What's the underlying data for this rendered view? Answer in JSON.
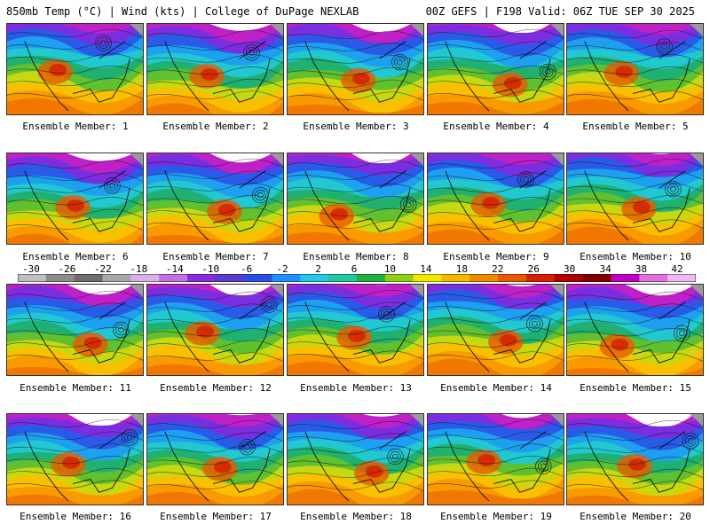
{
  "header": {
    "left": "850mb Temp (°C) | Wind (kts) | College of DuPage NEXLAB",
    "right": "00Z GEFS | F198 Valid: 06Z TUE SEP 30 2025"
  },
  "panels": [
    {
      "label": "Ensemble Member: 1"
    },
    {
      "label": "Ensemble Member: 2"
    },
    {
      "label": "Ensemble Member: 3"
    },
    {
      "label": "Ensemble Member: 4"
    },
    {
      "label": "Ensemble Member: 5"
    },
    {
      "label": "Ensemble Member: 6"
    },
    {
      "label": "Ensemble Member: 7"
    },
    {
      "label": "Ensemble Member: 8"
    },
    {
      "label": "Ensemble Member: 9"
    },
    {
      "label": "Ensemble Member: 10"
    },
    {
      "label": "Ensemble Member: 11"
    },
    {
      "label": "Ensemble Member: 12"
    },
    {
      "label": "Ensemble Member: 13"
    },
    {
      "label": "Ensemble Member: 14"
    },
    {
      "label": "Ensemble Member: 15"
    },
    {
      "label": "Ensemble Member: 16"
    },
    {
      "label": "Ensemble Member: 17"
    },
    {
      "label": "Ensemble Member: 18"
    },
    {
      "label": "Ensemble Member: 19"
    },
    {
      "label": "Ensemble Member: 20"
    }
  ],
  "colorbar": {
    "ticks": [
      "-30",
      "-26",
      "-22",
      "-18",
      "-14",
      "-10",
      "-6",
      "-2",
      "2",
      "6",
      "10",
      "14",
      "18",
      "22",
      "26",
      "30",
      "34",
      "38",
      "42"
    ],
    "colors": [
      "#bfbfbf",
      "#8c8c8c",
      "#6e6e6e",
      "#a8a8a8",
      "#d8b0e8",
      "#c070e0",
      "#8a2be2",
      "#5a3cd0",
      "#2a4fe0",
      "#1e90ff",
      "#22c8e8",
      "#1ec8a0",
      "#20b040",
      "#8cd018",
      "#f0e800",
      "#f8b800",
      "#f08800",
      "#e85a00",
      "#d82000",
      "#b00000",
      "#800000",
      "#c000c0",
      "#e070e0",
      "#f0b8f0"
    ]
  }
}
